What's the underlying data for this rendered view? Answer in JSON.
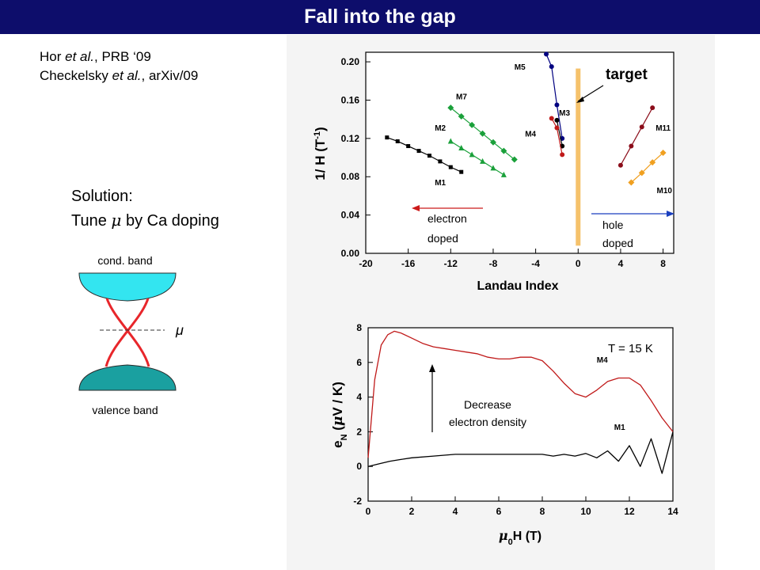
{
  "slide": {
    "title": "Fall into the gap",
    "references": [
      {
        "authors": "Hor",
        "etal": "et al.",
        "source": ", PRB ‘09"
      },
      {
        "authors": "Checkelsky",
        "etal": "et al.",
        "source": ", arXiv/09"
      }
    ],
    "solution_line1": "Solution:",
    "solution_line2_pre": "Tune ",
    "solution_mu": "μ",
    "solution_line2_post": " by Ca doping",
    "band_diagram": {
      "cond_label": "cond. band",
      "valence_label": "valence band",
      "mu_label": "μ",
      "colors": {
        "cond": "#33e5f0",
        "valence": "#1aa0a0",
        "crossing": "#e8262b"
      }
    },
    "colors": {
      "title_bar": "#0d0d6b",
      "panel": "#f4f4f4",
      "target": "#f5c26b",
      "green": "#1aa03a",
      "dark_red": "#8b0d1a",
      "orange": "#f0a020",
      "red_trace": "#c01a1a"
    }
  },
  "chart_data": [
    {
      "type": "scatter",
      "xlabel": "Landau Index",
      "ylabel": "1/ H (T",
      "ylabel_sup": "-1",
      "ylabel_end": ")",
      "xlim": [
        -20,
        9
      ],
      "ylim": [
        0,
        0.21
      ],
      "xticks": [
        "-20",
        "-16",
        "-12",
        "-8",
        "-4",
        "0",
        "4",
        "8"
      ],
      "xtick_values": [
        -20,
        -16,
        -12,
        -8,
        -4,
        0,
        4,
        8
      ],
      "yticks": [
        "0.00",
        "0.04",
        "0.08",
        "0.12",
        "0.16",
        "0.20"
      ],
      "ytick_values": [
        0,
        0.04,
        0.08,
        0.12,
        0.16,
        0.2
      ],
      "series": [
        {
          "name": "M1",
          "color": "#000000",
          "marker": "square",
          "x": [
            -18,
            -17,
            -16,
            -15,
            -14,
            -13,
            -12,
            -11
          ],
          "y": [
            0.121,
            0.117,
            0.112,
            0.107,
            0.102,
            0.096,
            0.09,
            0.085
          ]
        },
        {
          "name": "M2",
          "color": "#1aa03a",
          "marker": "triangle",
          "x": [
            -12,
            -11,
            -10,
            -9,
            -8,
            -7
          ],
          "y": [
            0.117,
            0.11,
            0.103,
            0.096,
            0.089,
            0.082
          ]
        },
        {
          "name": "M7",
          "color": "#1aa03a",
          "marker": "diamond",
          "x": [
            -12,
            -11,
            -10,
            -9,
            -8,
            -7,
            -6
          ],
          "y": [
            0.152,
            0.143,
            0.134,
            0.125,
            0.116,
            0.107,
            0.098
          ]
        },
        {
          "name": "M5",
          "color": "#000080",
          "marker": "circle",
          "x": [
            -3,
            -2.5,
            -2,
            -1.5
          ],
          "y": [
            0.208,
            0.195,
            0.155,
            0.12
          ]
        },
        {
          "name": "M3",
          "color": "#000000",
          "marker": "circle",
          "x": [
            -2,
            -1.5
          ],
          "y": [
            0.139,
            0.112
          ]
        },
        {
          "name": "M4",
          "color": "#c01a1a",
          "marker": "circle",
          "x": [
            -2.5,
            -2,
            -1.5
          ],
          "y": [
            0.141,
            0.131,
            0.103
          ]
        },
        {
          "name": "M11",
          "color": "#8b0d1a",
          "marker": "circle",
          "x": [
            4,
            5,
            6,
            7
          ],
          "y": [
            0.092,
            0.112,
            0.132,
            0.152
          ]
        },
        {
          "name": "M10",
          "color": "#f0a020",
          "marker": "diamond",
          "x": [
            5,
            6,
            7,
            8
          ],
          "y": [
            0.074,
            0.084,
            0.095,
            0.105
          ]
        }
      ],
      "annotations": {
        "target": "target",
        "electron_doped_1": "electron",
        "electron_doped_2": "doped",
        "hole_doped_1": "hole",
        "hole_doped_2": "doped",
        "target_x": 0
      }
    },
    {
      "type": "line",
      "xlabel_mu": "μ",
      "xlabel_sub": "0",
      "xlabel_rest": "H (T)",
      "ylabel_e": "e",
      "ylabel_sub": "N",
      "ylabel_open": " (",
      "ylabel_mu": "μ",
      "ylabel_rest": "V / K)",
      "xlim": [
        0,
        14
      ],
      "ylim": [
        -2,
        8
      ],
      "xticks": [
        "0",
        "2",
        "4",
        "6",
        "8",
        "10",
        "12",
        "14"
      ],
      "xtick_values": [
        0,
        2,
        4,
        6,
        8,
        10,
        12,
        14
      ],
      "yticks": [
        "-2",
        "0",
        "2",
        "4",
        "6",
        "8"
      ],
      "ytick_values": [
        -2,
        0,
        2,
        4,
        6,
        8
      ],
      "series": [
        {
          "name": "M4",
          "color": "#c01a1a",
          "x": [
            0,
            0.3,
            0.6,
            0.9,
            1.2,
            1.5,
            2,
            2.5,
            3,
            3.5,
            4,
            4.5,
            5,
            5.5,
            6,
            6.5,
            7,
            7.5,
            8,
            8.5,
            9,
            9.5,
            10,
            10.5,
            11,
            11.5,
            12,
            12.5,
            13,
            13.5,
            14
          ],
          "y": [
            0.5,
            5,
            7.0,
            7.6,
            7.8,
            7.7,
            7.4,
            7.1,
            6.9,
            6.8,
            6.7,
            6.6,
            6.5,
            6.3,
            6.2,
            6.2,
            6.3,
            6.3,
            6.1,
            5.5,
            4.8,
            4.2,
            4.0,
            4.4,
            4.9,
            5.1,
            5.1,
            4.7,
            3.8,
            2.8,
            2.0
          ]
        },
        {
          "name": "M1",
          "color": "#000000",
          "x": [
            0,
            0.5,
            1,
            1.5,
            2,
            3,
            4,
            5,
            6,
            7,
            8,
            8.5,
            9,
            9.5,
            10,
            10.5,
            11,
            11.5,
            12,
            12.5,
            13,
            13.5,
            14
          ],
          "y": [
            0,
            0.15,
            0.3,
            0.4,
            0.5,
            0.6,
            0.7,
            0.7,
            0.7,
            0.7,
            0.7,
            0.6,
            0.7,
            0.6,
            0.75,
            0.5,
            0.9,
            0.3,
            1.2,
            0.0,
            1.6,
            -0.4,
            2.0
          ]
        }
      ],
      "annotations": {
        "temperature": "T = 15 K",
        "decrease_1": "Decrease",
        "decrease_2": "electron density"
      }
    }
  ]
}
